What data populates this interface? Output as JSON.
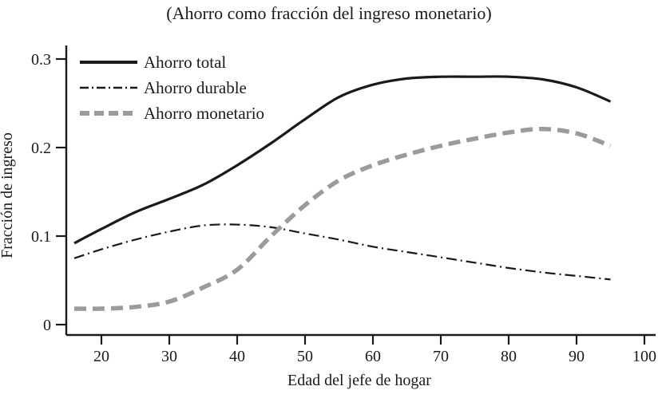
{
  "chart_data": {
    "type": "line",
    "title": "(Ahorro como fracción del ingreso monetario)",
    "xlabel": "Edad del jefe de hogar",
    "ylabel": "Fracción de ingreso",
    "xlim": [
      14,
      101
    ],
    "ylim": [
      -0.01,
      0.31
    ],
    "x_ticks": [
      20,
      30,
      40,
      50,
      60,
      70,
      80,
      90,
      100
    ],
    "y_ticks": [
      0,
      0.1,
      0.2,
      0.3
    ],
    "y_tick_labels": [
      "0",
      "0.1",
      "0.2",
      "0.3"
    ],
    "grid": false,
    "legend_position": "top-left-inside",
    "axis_color": "#1a1a1a",
    "x": [
      16,
      20,
      25,
      30,
      35,
      40,
      45,
      50,
      55,
      60,
      65,
      70,
      75,
      80,
      85,
      90,
      95
    ],
    "series": [
      {
        "name": "Ahorro total",
        "line_style": "solid",
        "color": "#1a1a1a",
        "width": 3.2,
        "values": [
          0.092,
          0.108,
          0.127,
          0.142,
          0.158,
          0.18,
          0.205,
          0.232,
          0.257,
          0.271,
          0.278,
          0.28,
          0.28,
          0.28,
          0.277,
          0.268,
          0.252
        ]
      },
      {
        "name": "Ahorro durable",
        "line_style": "dash-dot",
        "color": "#1a1a1a",
        "width": 2.2,
        "values": [
          0.075,
          0.085,
          0.096,
          0.105,
          0.112,
          0.113,
          0.11,
          0.103,
          0.096,
          0.088,
          0.082,
          0.076,
          0.07,
          0.064,
          0.059,
          0.055,
          0.051
        ]
      },
      {
        "name": "Ahorro monetario",
        "line_style": "dashed",
        "color": "#9b9b9b",
        "width": 5.5,
        "values": [
          0.018,
          0.018,
          0.02,
          0.026,
          0.042,
          0.062,
          0.1,
          0.135,
          0.163,
          0.18,
          0.192,
          0.202,
          0.21,
          0.217,
          0.221,
          0.216,
          0.202
        ]
      }
    ]
  }
}
